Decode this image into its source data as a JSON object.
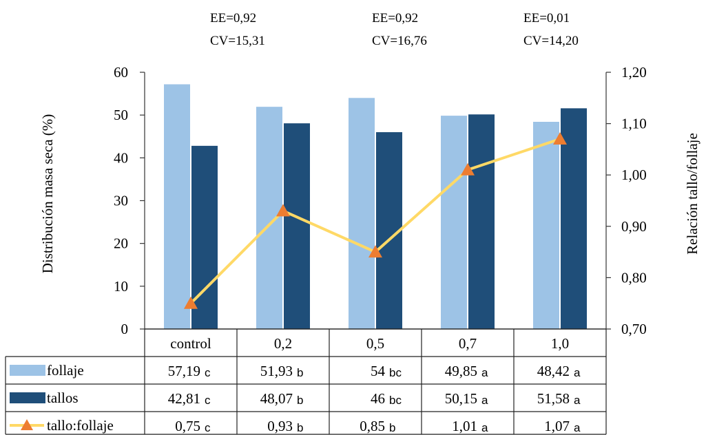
{
  "chart_data": {
    "type": "bar",
    "categories": [
      "control",
      "0,2",
      "0,5",
      "0,7",
      "1,0"
    ],
    "ylabel": "Distribución masa seca (%)",
    "ylabel_right": "Relación tallo/follaje",
    "ylim": [
      0,
      60
    ],
    "yticks": [
      "0",
      "10",
      "20",
      "30",
      "40",
      "50",
      "60"
    ],
    "ylim_right": [
      0.7,
      1.2
    ],
    "yticks_right": [
      "0,70",
      "0,80",
      "0,90",
      "1,00",
      "1,10",
      "1,20"
    ],
    "series": [
      {
        "name": "follaje",
        "kind": "bar",
        "axis": "left",
        "color": "#9dc3e6",
        "values": [
          57.19,
          51.93,
          54,
          49.85,
          48.42
        ],
        "table_values": [
          "57,19",
          "51,93",
          "54",
          "49,85",
          "48,42"
        ],
        "letters": [
          "c",
          "b",
          "bc",
          "a",
          "a"
        ]
      },
      {
        "name": "tallos",
        "kind": "bar",
        "axis": "right-bar",
        "color": "#1f4e79",
        "values": [
          42.81,
          48.07,
          46,
          50.15,
          51.58
        ],
        "table_values": [
          "42,81",
          "48,07",
          "46",
          "50,15",
          "51,58"
        ],
        "letters": [
          "c",
          "b",
          "bc",
          "a",
          "a"
        ]
      },
      {
        "name": "tallo:follaje",
        "kind": "line",
        "axis": "right",
        "color": "#ffd966",
        "marker_color": "#ed7d31",
        "values": [
          0.75,
          0.93,
          0.85,
          1.01,
          1.07
        ],
        "table_values": [
          "0,75",
          "0,93",
          "0,85",
          "1,01",
          "1,07"
        ],
        "letters": [
          "c",
          "b",
          "b",
          "a",
          "a"
        ]
      }
    ],
    "annotations": [
      {
        "ee": "EE=0,92",
        "cv": "CV=15,31"
      },
      {
        "ee": "EE=0,92",
        "cv": "CV=16,76"
      },
      {
        "ee": "EE=0,01",
        "cv": "CV=14,20"
      }
    ],
    "grid": false,
    "legend": "data-table"
  }
}
